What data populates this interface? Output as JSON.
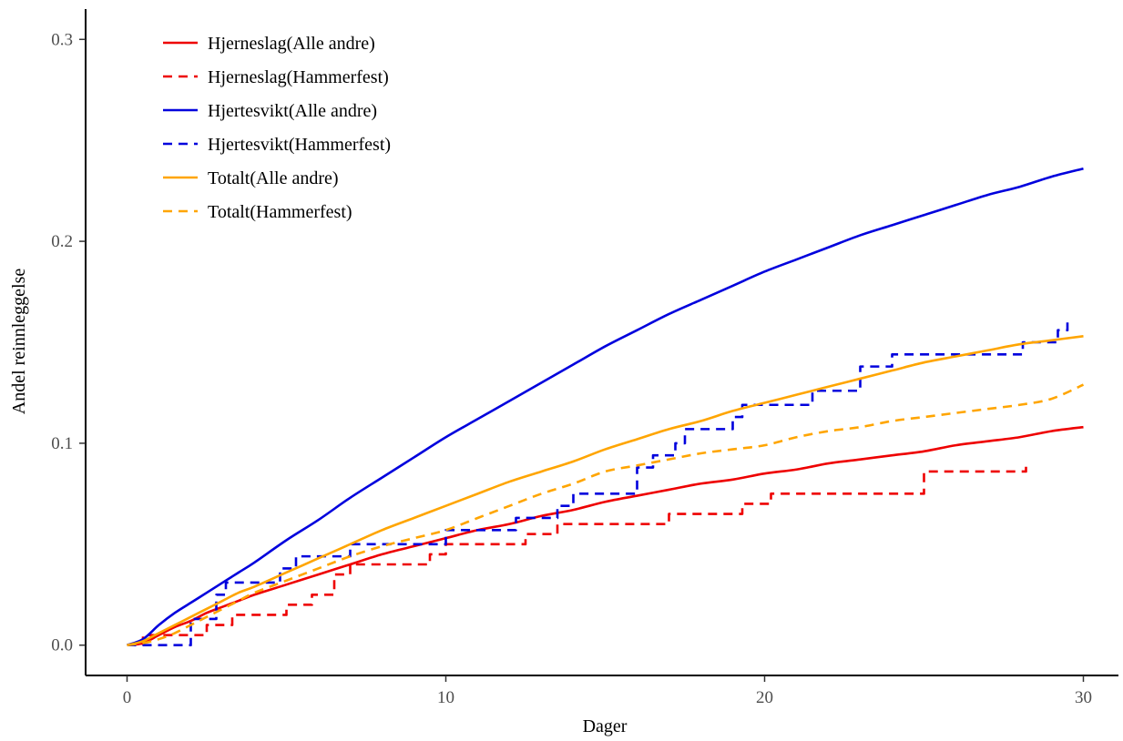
{
  "chart_data": {
    "type": "line",
    "title": "",
    "xlabel": "Dager",
    "ylabel": "Andel reinnleggelse",
    "xlim": [
      -1.3,
      31.1
    ],
    "ylim": [
      -0.015,
      0.315
    ],
    "x_ticks": [
      0,
      10,
      20,
      30
    ],
    "x_tick_labels": [
      "0",
      "10",
      "20",
      "30"
    ],
    "y_ticks": [
      0.0,
      0.1,
      0.2,
      0.3
    ],
    "y_tick_labels": [
      "0.0",
      "0.1",
      "0.2",
      "0.3"
    ],
    "grid": false,
    "legend_position": "top-left",
    "series": [
      {
        "name": "Hjerneslag(Alle andre)",
        "color": "#ee0000",
        "dash": "solid",
        "step": false,
        "x": [
          0,
          0.5,
          1,
          1.5,
          2,
          2.5,
          3,
          3.5,
          4,
          5,
          6,
          7,
          8,
          9,
          10,
          11,
          12,
          13,
          14,
          15,
          16,
          17,
          18,
          19,
          20,
          21,
          22,
          23,
          24,
          25,
          26,
          27,
          28,
          29,
          30
        ],
        "y": [
          0,
          0.001,
          0.005,
          0.009,
          0.012,
          0.016,
          0.019,
          0.022,
          0.025,
          0.03,
          0.035,
          0.04,
          0.045,
          0.049,
          0.053,
          0.057,
          0.06,
          0.064,
          0.067,
          0.071,
          0.074,
          0.077,
          0.08,
          0.082,
          0.085,
          0.087,
          0.09,
          0.092,
          0.094,
          0.096,
          0.099,
          0.101,
          0.103,
          0.106,
          0.108
        ]
      },
      {
        "name": "Hjerneslag(Hammerfest)",
        "color": "#ee0000",
        "dash": "dashed",
        "step": true,
        "x": [
          0,
          0.5,
          1.8,
          2.5,
          3.3,
          5,
          5.8,
          6.5,
          7,
          9,
          9.5,
          10,
          12,
          12.5,
          13.5,
          14.5,
          16.5,
          17,
          19.3,
          20.2,
          21.5,
          25,
          28.2
        ],
        "y": [
          0,
          0.005,
          0.005,
          0.01,
          0.015,
          0.02,
          0.025,
          0.035,
          0.04,
          0.04,
          0.045,
          0.05,
          0.05,
          0.055,
          0.06,
          0.06,
          0.06,
          0.065,
          0.07,
          0.075,
          0.075,
          0.086,
          0.09
        ]
      },
      {
        "name": "Hjertesvikt(Alle andre)",
        "color": "#0000dd",
        "dash": "solid",
        "step": false,
        "x": [
          0,
          0.5,
          1,
          1.5,
          2,
          2.5,
          3,
          3.5,
          4,
          5,
          6,
          7,
          8,
          9,
          10,
          11,
          12,
          13,
          14,
          15,
          16,
          17,
          18,
          19,
          20,
          21,
          22,
          23,
          24,
          25,
          26,
          27,
          28,
          29,
          30
        ],
        "y": [
          0,
          0.003,
          0.01,
          0.016,
          0.021,
          0.026,
          0.031,
          0.036,
          0.041,
          0.052,
          0.062,
          0.073,
          0.083,
          0.093,
          0.103,
          0.112,
          0.121,
          0.13,
          0.139,
          0.148,
          0.156,
          0.164,
          0.171,
          0.178,
          0.185,
          0.191,
          0.197,
          0.203,
          0.208,
          0.213,
          0.218,
          0.223,
          0.227,
          0.232,
          0.236
        ]
      },
      {
        "name": "Hjertesvikt(Hammerfest)",
        "color": "#0000dd",
        "dash": "dashed",
        "step": true,
        "x": [
          0,
          0.6,
          2,
          2.3,
          2.8,
          3.1,
          4.8,
          5.3,
          7,
          10,
          11,
          12.2,
          13.5,
          14,
          16,
          16.5,
          17.2,
          17.5,
          19,
          19.3,
          21.2,
          21.5,
          22.5,
          23,
          24,
          25,
          27,
          28.1,
          29.2,
          29.5
        ],
        "y": [
          0,
          0,
          0.013,
          0.013,
          0.025,
          0.031,
          0.038,
          0.044,
          0.05,
          0.057,
          0.057,
          0.063,
          0.069,
          0.075,
          0.088,
          0.094,
          0.1,
          0.107,
          0.113,
          0.119,
          0.119,
          0.126,
          0.126,
          0.138,
          0.144,
          0.144,
          0.144,
          0.15,
          0.156,
          0.16
        ]
      },
      {
        "name": "Totalt(Alle andre)",
        "color": "#ffa500",
        "dash": "solid",
        "step": false,
        "x": [
          0,
          0.5,
          1,
          1.5,
          2,
          2.5,
          3,
          3.5,
          4,
          5,
          6,
          7,
          8,
          9,
          10,
          11,
          12,
          13,
          14,
          15,
          16,
          17,
          18,
          19,
          20,
          21,
          22,
          23,
          24,
          25,
          26,
          27,
          28,
          29,
          30
        ],
        "y": [
          0,
          0.002,
          0.006,
          0.01,
          0.014,
          0.018,
          0.022,
          0.026,
          0.029,
          0.036,
          0.043,
          0.05,
          0.057,
          0.063,
          0.069,
          0.075,
          0.081,
          0.086,
          0.091,
          0.097,
          0.102,
          0.107,
          0.111,
          0.116,
          0.12,
          0.124,
          0.128,
          0.132,
          0.136,
          0.14,
          0.143,
          0.146,
          0.149,
          0.151,
          0.153
        ]
      },
      {
        "name": "Totalt(Hammerfest)",
        "color": "#ffa500",
        "dash": "dashed",
        "step": false,
        "x": [
          0,
          0.5,
          1,
          1.5,
          2,
          2.5,
          3,
          3.5,
          4,
          5,
          6,
          7,
          8,
          9,
          10,
          11,
          12,
          13,
          14,
          15,
          16,
          17,
          18,
          19,
          20,
          21,
          22,
          23,
          24,
          25,
          26,
          27,
          28,
          29,
          30
        ],
        "y": [
          0,
          0.001,
          0.003,
          0.006,
          0.01,
          0.014,
          0.018,
          0.022,
          0.026,
          0.032,
          0.038,
          0.044,
          0.049,
          0.053,
          0.057,
          0.063,
          0.069,
          0.075,
          0.08,
          0.086,
          0.089,
          0.092,
          0.095,
          0.097,
          0.099,
          0.103,
          0.106,
          0.108,
          0.111,
          0.113,
          0.115,
          0.117,
          0.119,
          0.122,
          0.129
        ]
      }
    ]
  }
}
